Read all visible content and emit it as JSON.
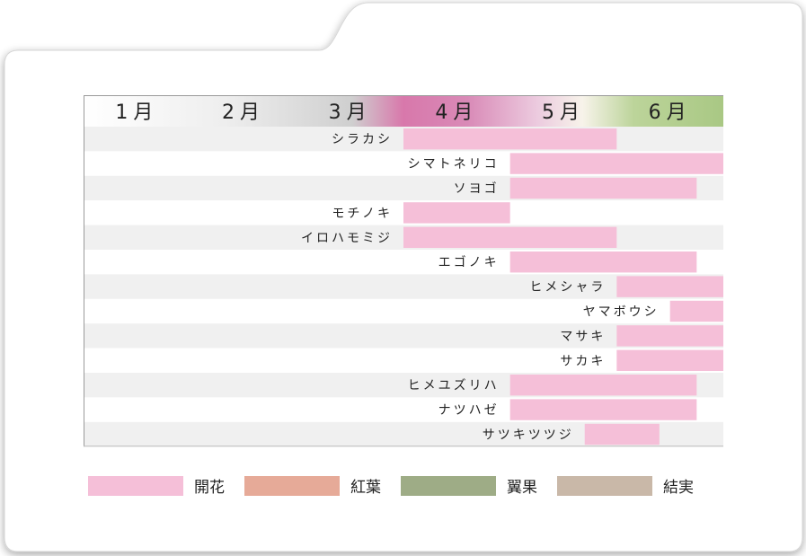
{
  "chart_data": {
    "type": "gantt",
    "months": [
      "1月",
      "2月",
      "3月",
      "4月",
      "5月",
      "6月"
    ],
    "xlim": [
      1,
      7
    ],
    "rows": [
      {
        "name": "シラカシ",
        "start": 4.0,
        "end": 6.0
      },
      {
        "name": "シマトネリコ",
        "start": 5.0,
        "end": 7.0
      },
      {
        "name": "ソヨゴ",
        "start": 5.0,
        "end": 6.75
      },
      {
        "name": "モチノキ",
        "start": 4.0,
        "end": 5.0
      },
      {
        "name": "イロハモミジ",
        "start": 4.0,
        "end": 6.0
      },
      {
        "name": "エゴノキ",
        "start": 5.0,
        "end": 6.75
      },
      {
        "name": "ヒメシャラ",
        "start": 6.0,
        "end": 7.0
      },
      {
        "name": "ヤマボウシ",
        "start": 6.5,
        "end": 7.0
      },
      {
        "name": "マサキ",
        "start": 6.0,
        "end": 7.0
      },
      {
        "name": "サカキ",
        "start": 6.0,
        "end": 7.0
      },
      {
        "name": "ヒメユズリハ",
        "start": 5.0,
        "end": 6.75
      },
      {
        "name": "ナツハゼ",
        "start": 5.0,
        "end": 6.75
      },
      {
        "name": "サツキツツジ",
        "start": 5.7,
        "end": 6.4
      }
    ],
    "series_color": "#f5bfd8"
  },
  "legend": [
    {
      "label": "開花",
      "color": "#f5bfd8"
    },
    {
      "label": "紅葉",
      "color": "#e6aa98"
    },
    {
      "label": "翼果",
      "color": "#9eac86"
    },
    {
      "label": "結実",
      "color": "#c9b8a8"
    }
  ]
}
